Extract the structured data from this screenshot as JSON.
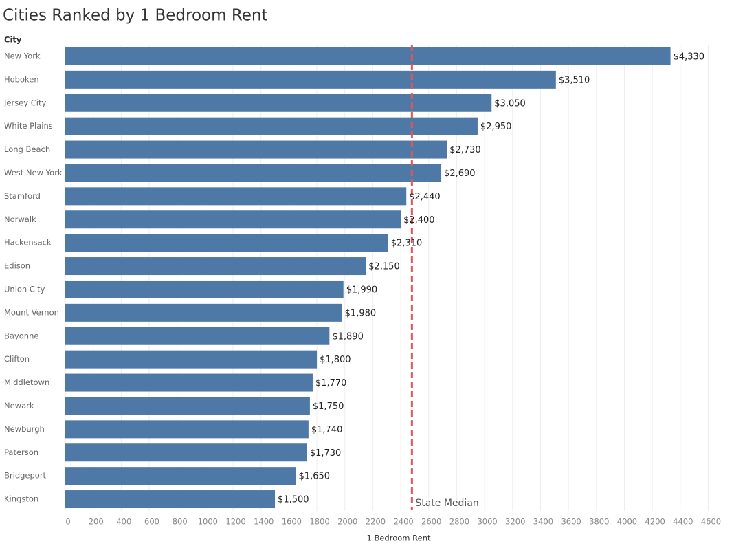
{
  "chart_data": {
    "type": "bar",
    "orientation": "horizontal",
    "title": "Cities Ranked by 1 Bedroom Rent",
    "y_label": "City",
    "x_label": "1 Bedroom Rent",
    "categories": [
      "New York",
      "Hoboken",
      "Jersey City",
      "White Plains",
      "Long Beach",
      "West New York",
      "Stamford",
      "Norwalk",
      "Hackensack",
      "Edison",
      "Union City",
      "Mount Vernon",
      "Bayonne",
      "Clifton",
      "Middletown",
      "Newark",
      "Newburgh",
      "Paterson",
      "Bridgeport",
      "Kingston"
    ],
    "values": [
      4330,
      3510,
      3050,
      2950,
      2730,
      2690,
      2440,
      2400,
      2310,
      2150,
      1990,
      1980,
      1890,
      1800,
      1770,
      1750,
      1740,
      1730,
      1650,
      1500
    ],
    "value_labels": [
      "$4,330",
      "$3,510",
      "$3,050",
      "$2,950",
      "$2,730",
      "$2,690",
      "$2,440",
      "$2,400",
      "$2,310",
      "$2,150",
      "$1,990",
      "$1,980",
      "$1,890",
      "$1,800",
      "$1,770",
      "$1,750",
      "$1,740",
      "$1,730",
      "$1,650",
      "$1,500"
    ],
    "color": "#4e79a7",
    "xlim": [
      0,
      4750
    ],
    "xticks": [
      0,
      200,
      400,
      600,
      800,
      1000,
      1200,
      1400,
      1600,
      1800,
      2000,
      2200,
      2400,
      2600,
      2800,
      3000,
      3200,
      3400,
      3600,
      3800,
      4000,
      4200,
      4400,
      4600
    ],
    "grid": true,
    "reference_line": {
      "value": 2480,
      "label": "State Median",
      "color": "#e15759"
    }
  }
}
